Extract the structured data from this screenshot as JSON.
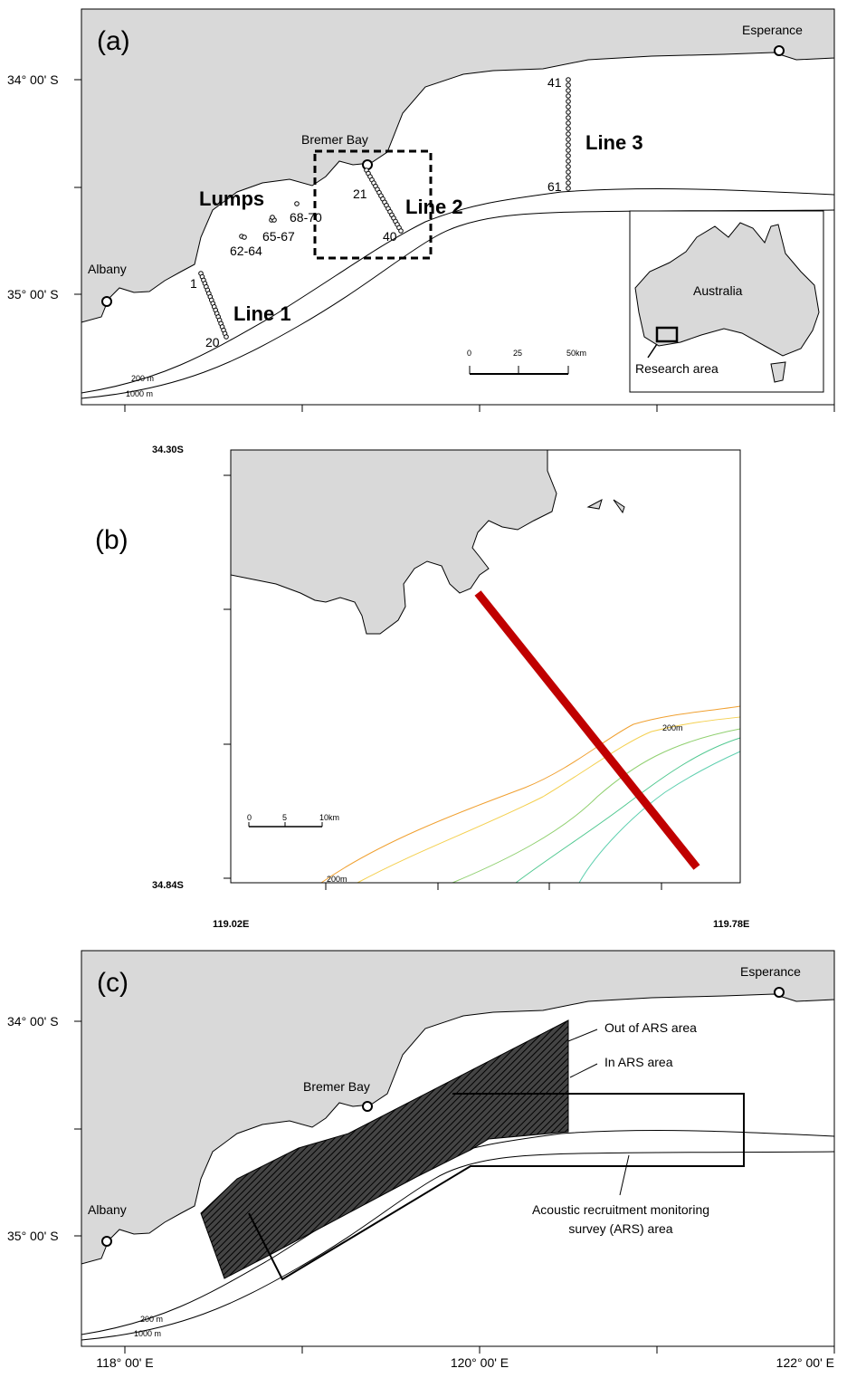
{
  "panel_a": {
    "label": "(a)",
    "places": [
      "Esperance",
      "Bremer Bay",
      "Albany"
    ],
    "lat_labels": [
      "34° 00' S",
      "35° 00' S"
    ],
    "lumps": "Lumps",
    "lines": [
      "Line 1",
      "Line 2",
      "Line 3"
    ],
    "stations": [
      "1",
      "20",
      "21",
      "40",
      "41",
      "61",
      "62-64",
      "65-67",
      "68-70"
    ],
    "contours": [
      "200 m",
      "1000 m"
    ],
    "scale": [
      "0",
      "25",
      "50km"
    ],
    "inset": {
      "country": "Australia",
      "area": "Research area"
    }
  },
  "panel_b": {
    "label": "(b)",
    "lat_labels": [
      "34.30S",
      "34.84S"
    ],
    "lon_labels": [
      "119.02E",
      "119.78E"
    ],
    "contours": [
      "200m",
      "200m"
    ],
    "scale": [
      "0",
      "5",
      "10km"
    ]
  },
  "panel_c": {
    "label": "(c)",
    "places": [
      "Esperance",
      "Bremer Bay",
      "Albany"
    ],
    "lat_labels": [
      "34° 00' S",
      "35° 00' S"
    ],
    "lon_labels": [
      "118° 00' E",
      "120° 00' E",
      "122° 00' E"
    ],
    "out_area": "Out of ARS area",
    "in_area": "In ARS area",
    "ars_area": [
      "Acoustic recruitment monitoring",
      "survey (ARS) area"
    ],
    "contours": [
      "200 m",
      "1000 m"
    ]
  }
}
